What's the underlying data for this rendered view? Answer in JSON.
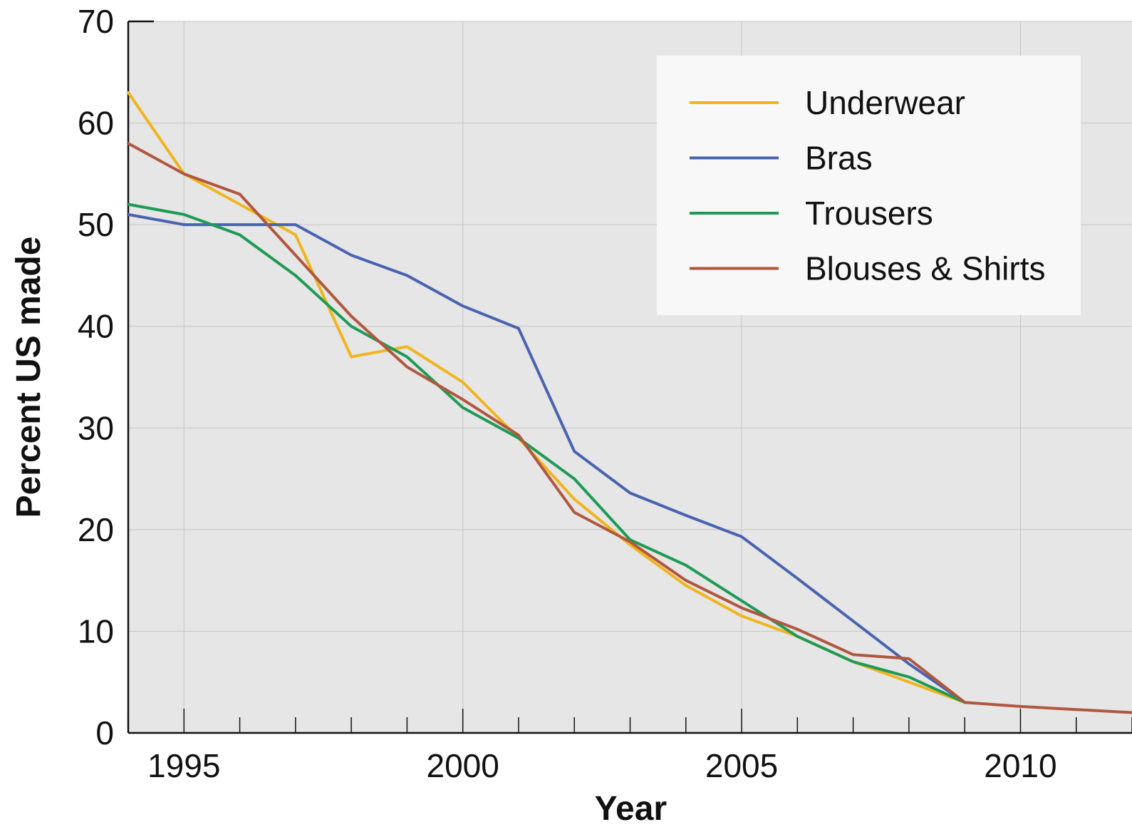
{
  "chart_data": {
    "type": "line",
    "title": "",
    "xlabel": "Year",
    "ylabel": "Percent US made",
    "xlim": [
      1994,
      2012
    ],
    "ylim": [
      0,
      70
    ],
    "x_ticks": [
      1995,
      2000,
      2005,
      2010
    ],
    "y_ticks": [
      0,
      10,
      20,
      30,
      40,
      50,
      60,
      70
    ],
    "grid": true,
    "legend_position": "top-right",
    "series": [
      {
        "name": "Underwear",
        "color": "#f0b51e",
        "points": [
          [
            1994,
            63
          ],
          [
            1995,
            55
          ],
          [
            1996,
            52
          ],
          [
            1997,
            49
          ],
          [
            1998,
            37
          ],
          [
            1999,
            38
          ],
          [
            2000,
            34.5
          ],
          [
            2001,
            29
          ],
          [
            2002,
            23
          ],
          [
            2003,
            18.5
          ],
          [
            2004,
            14.5
          ],
          [
            2005,
            11.5
          ],
          [
            2006,
            9.5
          ],
          [
            2007,
            7
          ],
          [
            2008,
            5
          ],
          [
            2009,
            3
          ]
        ]
      },
      {
        "name": "Bras",
        "color": "#4a63b0",
        "points": [
          [
            1994,
            51
          ],
          [
            1995,
            50
          ],
          [
            1996,
            50
          ],
          [
            1997,
            50
          ],
          [
            1998,
            47
          ],
          [
            1999,
            45
          ],
          [
            2000,
            42
          ],
          [
            2001,
            39.8
          ],
          [
            2002,
            27.7
          ],
          [
            2003,
            23.6
          ],
          [
            2004,
            21.4
          ],
          [
            2005,
            19.3
          ],
          [
            2006,
            15.2
          ],
          [
            2007,
            11
          ],
          [
            2008,
            6.8
          ],
          [
            2009,
            3
          ]
        ]
      },
      {
        "name": "Trousers",
        "color": "#1f9a55",
        "points": [
          [
            1994,
            52
          ],
          [
            1995,
            51
          ],
          [
            1996,
            49
          ],
          [
            1997,
            45
          ],
          [
            1998,
            40
          ],
          [
            1999,
            37
          ],
          [
            2000,
            32
          ],
          [
            2001,
            29
          ],
          [
            2002,
            25
          ],
          [
            2003,
            19
          ],
          [
            2004,
            16.5
          ],
          [
            2005,
            13
          ],
          [
            2006,
            9.5
          ],
          [
            2007,
            7
          ],
          [
            2008,
            5.5
          ],
          [
            2009,
            3
          ]
        ]
      },
      {
        "name": "Blouses & Shirts",
        "color": "#b0573f",
        "points": [
          [
            1994,
            58
          ],
          [
            1995,
            55
          ],
          [
            1996,
            53
          ],
          [
            1997,
            47
          ],
          [
            1998,
            41
          ],
          [
            1999,
            36
          ],
          [
            2000,
            32.8
          ],
          [
            2001,
            29.3
          ],
          [
            2002,
            21.7
          ],
          [
            2003,
            18.8
          ],
          [
            2004,
            15
          ],
          [
            2005,
            12.3
          ],
          [
            2006,
            10.2
          ],
          [
            2007,
            7.7
          ],
          [
            2008,
            7.3
          ],
          [
            2009,
            3
          ],
          [
            2010,
            2.6
          ],
          [
            2011,
            2.3
          ],
          [
            2012,
            2
          ]
        ]
      }
    ]
  }
}
